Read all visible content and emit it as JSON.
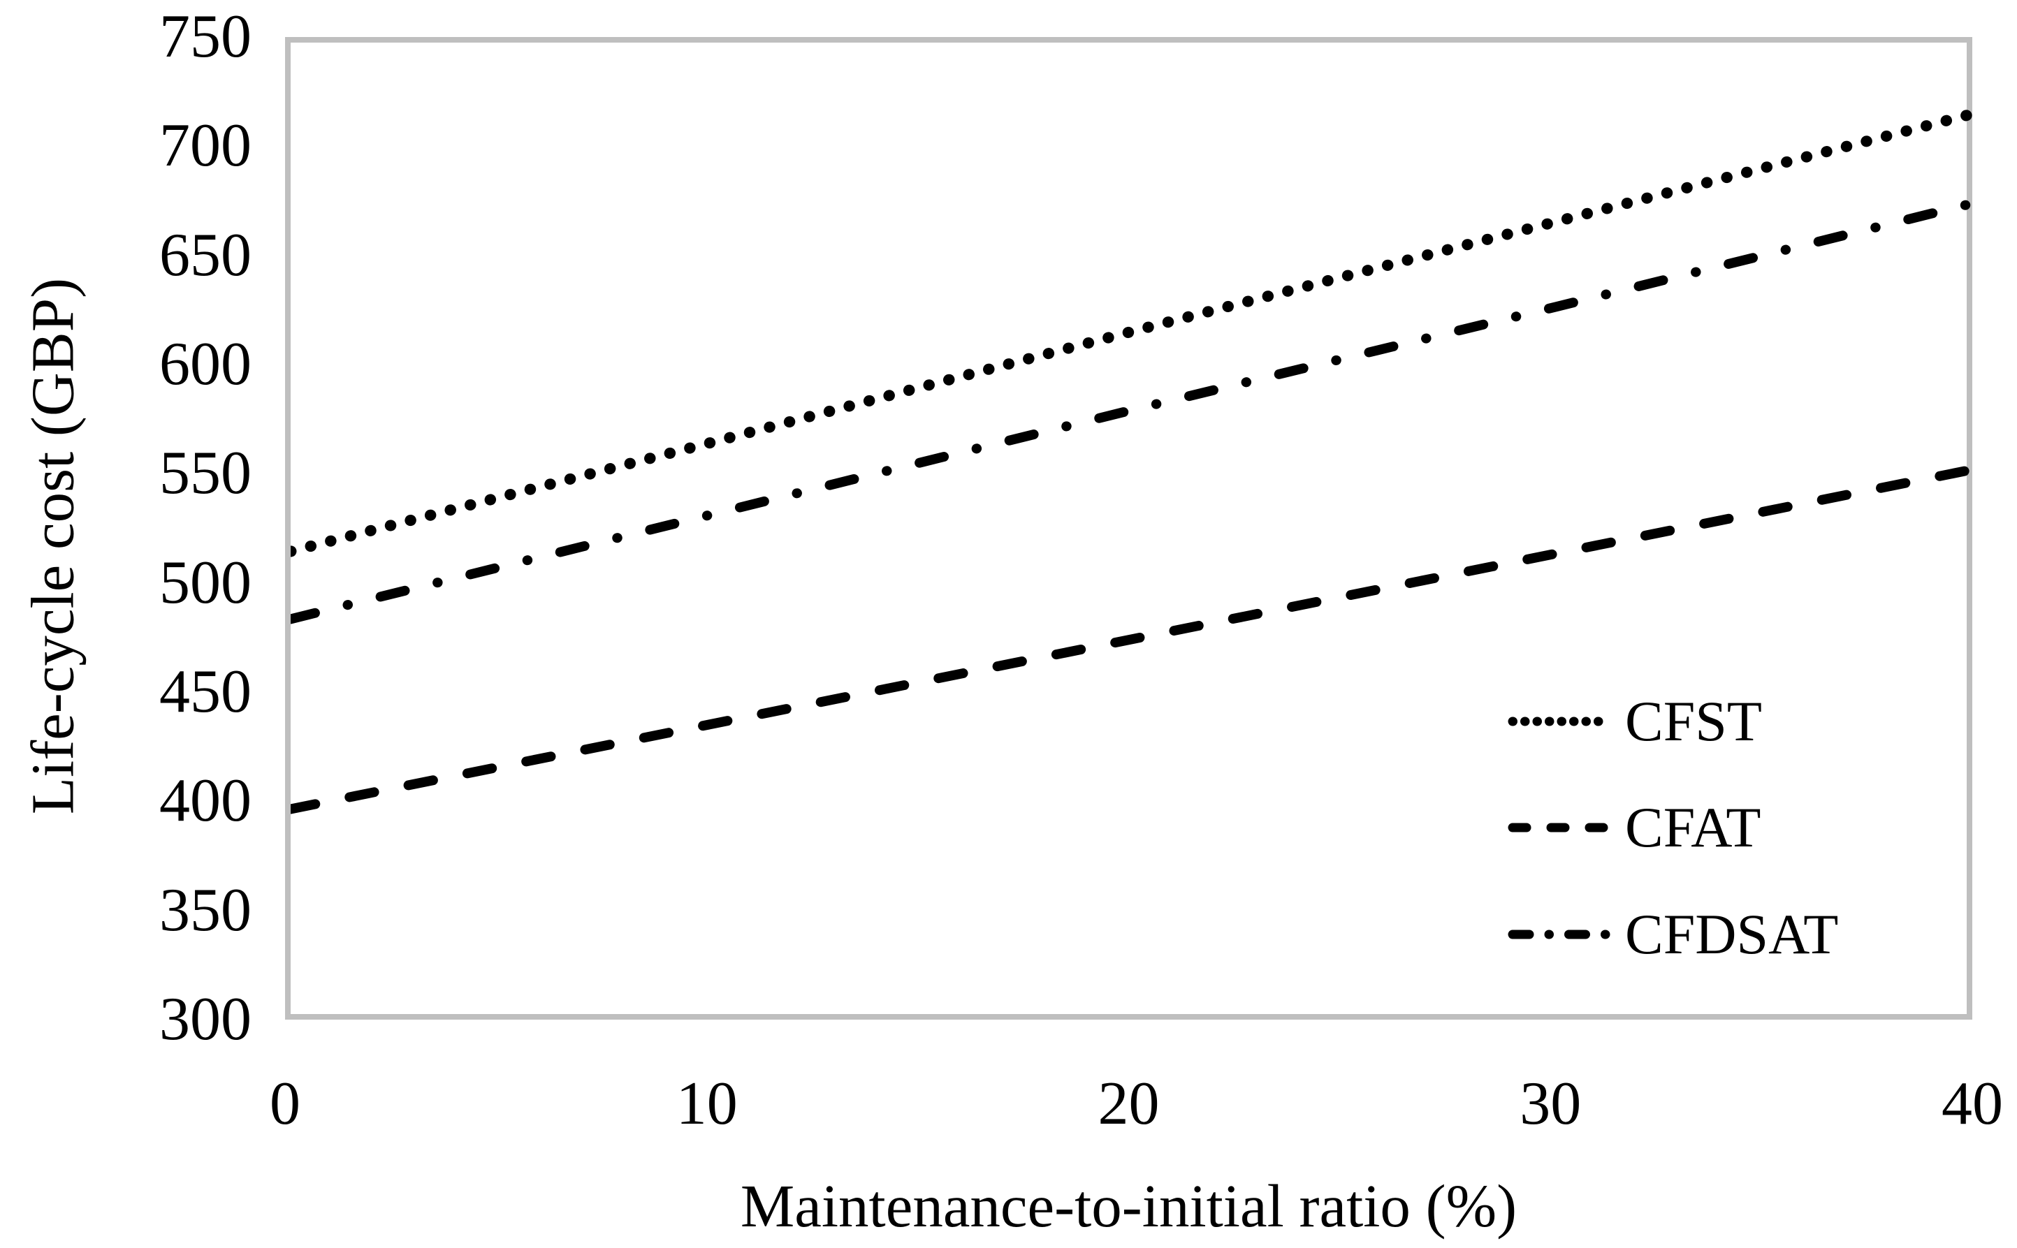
{
  "chart_data": {
    "type": "line",
    "x": [
      0,
      10,
      20,
      30,
      40
    ],
    "series": [
      {
        "name": "CFST",
        "style": "dotted",
        "values": [
          517,
          567,
          618,
          668,
          718
        ]
      },
      {
        "name": "CFAT",
        "style": "dashed",
        "values": [
          399,
          438,
          477,
          516,
          555
        ]
      },
      {
        "name": "CFDSAT",
        "style": "dashdot",
        "values": [
          486,
          534,
          582,
          629,
          677
        ]
      }
    ],
    "legend_order": [
      "CFST",
      "CFAT",
      "CFDSAT"
    ],
    "xlabel": "Maintenance-to-initial ratio (%)",
    "ylabel": "Life-cycle cost (GBP)",
    "xlim": [
      0,
      40
    ],
    "ylim": [
      300,
      750
    ],
    "xticks": [
      0,
      10,
      20,
      30,
      40
    ],
    "yticks": [
      750,
      700,
      650,
      600,
      550,
      500,
      450,
      400,
      350,
      300
    ],
    "grid": "off",
    "legend_position": "lower right inside plot",
    "line_color": "#000000",
    "frame_color": "#BFBFBF",
    "background_color": "#FFFFFF"
  }
}
